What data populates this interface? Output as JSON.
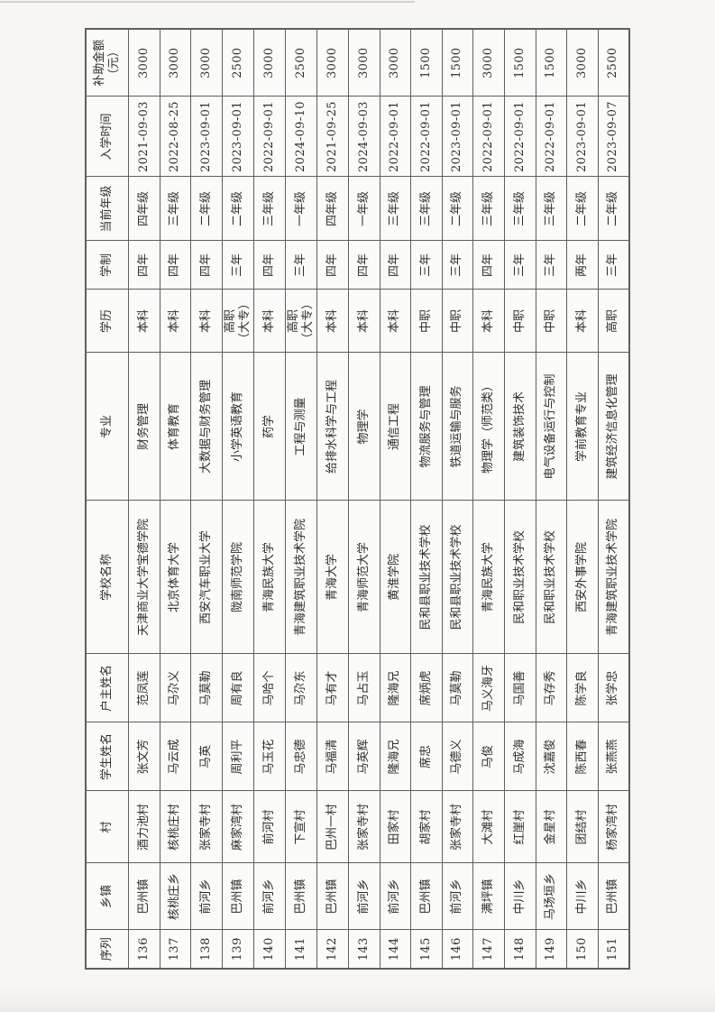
{
  "page": {
    "paper_color": "#f7f6f3",
    "cell_color": "#fbfbf9",
    "border_color": "#5f5f5c",
    "text_color": "#2e2e2c"
  },
  "table": {
    "headers": [
      "序列",
      "乡镇",
      "村",
      "学生姓名",
      "户主姓名",
      "学校名称",
      "专业",
      "学历",
      "学制",
      "当前年级",
      "入学时间",
      "补助金额\n（元）"
    ],
    "rows": [
      [
        "136",
        "巴州镇",
        "酒力池村",
        "张文芳",
        "范凤莲",
        "天津商业大学宝德学院",
        "财务管理",
        "本科",
        "四年",
        "四年级",
        "2021-09-03",
        "3000"
      ],
      [
        "137",
        "核桃庄乡",
        "核桃庄村",
        "马云成",
        "马尕义",
        "北京体育大学",
        "体育教育",
        "本科",
        "四年",
        "三年级",
        "2022-08-25",
        "3000"
      ],
      [
        "138",
        "前河乡",
        "张家寺村",
        "马英",
        "马莫勒",
        "西安汽车职业大学",
        "大数据与财务管理",
        "本科",
        "四年",
        "二年级",
        "2023-09-01",
        "3000"
      ],
      [
        "139",
        "巴州镇",
        "麻家湾村",
        "周利平",
        "周有良",
        "陇南师范学院",
        "小学英语教育",
        "高职\n（大专）",
        "三年",
        "二年级",
        "2023-09-01",
        "2500"
      ],
      [
        "140",
        "前河乡",
        "前河村",
        "马玉花",
        "马哈个",
        "青海民族大学",
        "药学",
        "本科",
        "四年",
        "三年级",
        "2022-09-01",
        "3000"
      ],
      [
        "141",
        "巴州镇",
        "下宣村",
        "马忠德",
        "马尕东",
        "青海建筑职业技术学院",
        "工程与测量",
        "高职\n（大专）",
        "三年",
        "一年级",
        "2024-09-10",
        "2500"
      ],
      [
        "142",
        "巴州镇",
        "巴州一村",
        "马福清",
        "马有才",
        "青海大学",
        "给排水科学与工程",
        "本科",
        "四年",
        "四年级",
        "2021-09-25",
        "3000"
      ],
      [
        "143",
        "前河乡",
        "张家寺村",
        "马英辉",
        "马占玉",
        "青海师范大学",
        "物理学",
        "本科",
        "四年",
        "一年级",
        "2024-09-03",
        "3000"
      ],
      [
        "144",
        "前河乡",
        "田家村",
        "隆海兄",
        "隆海兄",
        "黄淮学院",
        "通信工程",
        "本科",
        "四年",
        "三年级",
        "2022-09-01",
        "3000"
      ],
      [
        "145",
        "巴州镇",
        "胡家村",
        "席忠",
        "席炳虎",
        "民和县职业技术学校",
        "物流服务与管理",
        "中职",
        "三年",
        "三年级",
        "2022-09-01",
        "1500"
      ],
      [
        "146",
        "前河乡",
        "张家寺村",
        "马德义",
        "马莫勒",
        "民和县职业技术学校",
        "铁道运输与服务",
        "中职",
        "三年",
        "二年级",
        "2023-09-01",
        "1500"
      ],
      [
        "147",
        "满坪镇",
        "大滩村",
        "马俊",
        "马义海牙",
        "青海民族大学",
        "物理学（师范类）",
        "本科",
        "四年",
        "三年级",
        "2022-09-01",
        "3000"
      ],
      [
        "148",
        "中川乡",
        "红崖村",
        "马成海",
        "马国善",
        "民和职业技术学校",
        "建筑装饰技术",
        "中职",
        "三年",
        "三年级",
        "2022-09-01",
        "1500"
      ],
      [
        "149",
        "马场垣乡",
        "金星村",
        "沈嘉俊",
        "马存秀",
        "民和职业技术学校",
        "电气设备运行与控制",
        "中职",
        "三年",
        "三年级",
        "2022-09-01",
        "1500"
      ],
      [
        "150",
        "中川乡",
        "团结村",
        "陈西春",
        "陈学良",
        "西安外事学院",
        "学前教育专业",
        "本科",
        "两年",
        "二年级",
        "2023-09-01",
        "3000"
      ],
      [
        "151",
        "巴州镇",
        "杨家湾村",
        "张燕燕",
        "张学忠",
        "青海建筑职业技术学院",
        "建筑经济信息化管理",
        "高职",
        "三年",
        "二年级",
        "2023-09-07",
        "2500"
      ]
    ]
  }
}
